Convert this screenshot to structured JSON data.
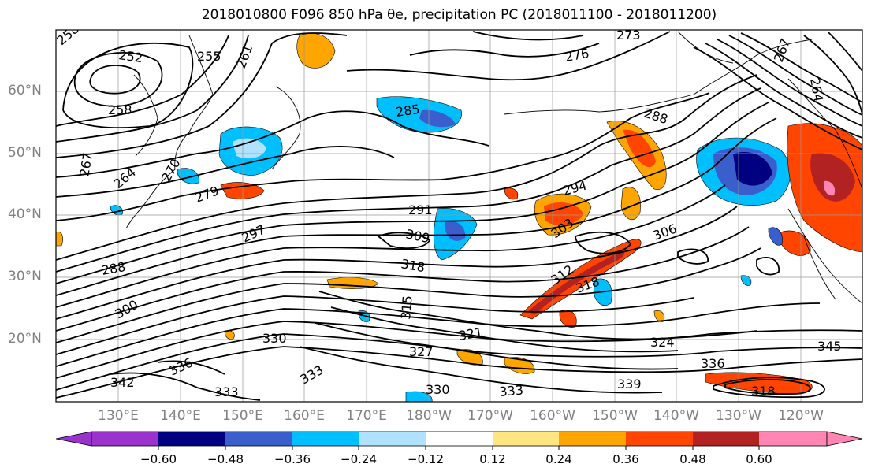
{
  "title": "2018010800 F096 850 hPa θe, precipitation PC (2018011100 - 2018011200)",
  "map": {
    "lat_ticks": [
      "60°N",
      "50°N",
      "40°N",
      "30°N",
      "20°N"
    ],
    "lon_ticks": [
      "130°E",
      "140°E",
      "150°E",
      "160°E",
      "170°E",
      "180°W",
      "170°W",
      "160°W",
      "150°W",
      "140°W",
      "130°W",
      "120°W"
    ],
    "contour_labels": [
      {
        "text": "258"
      },
      {
        "text": "252"
      },
      {
        "text": "255"
      },
      {
        "text": "261"
      },
      {
        "text": "273"
      },
      {
        "text": "276"
      },
      {
        "text": "267"
      },
      {
        "text": "264"
      },
      {
        "text": "258"
      },
      {
        "text": "285"
      },
      {
        "text": "288"
      },
      {
        "text": "267"
      },
      {
        "text": "264"
      },
      {
        "text": "270"
      },
      {
        "text": "279"
      },
      {
        "text": "294"
      },
      {
        "text": "291"
      },
      {
        "text": "297"
      },
      {
        "text": "309"
      },
      {
        "text": "303"
      },
      {
        "text": "306"
      },
      {
        "text": "318"
      },
      {
        "text": "312"
      },
      {
        "text": "318"
      },
      {
        "text": "288"
      },
      {
        "text": "300"
      },
      {
        "text": "315"
      },
      {
        "text": "321"
      },
      {
        "text": "324"
      },
      {
        "text": "330"
      },
      {
        "text": "327"
      },
      {
        "text": "336"
      },
      {
        "text": "342"
      },
      {
        "text": "333"
      },
      {
        "text": "333"
      },
      {
        "text": "330"
      },
      {
        "text": "333"
      },
      {
        "text": "339"
      },
      {
        "text": "336"
      },
      {
        "text": "345"
      },
      {
        "text": "318"
      }
    ]
  },
  "colorbar": {
    "colors": [
      "#9933cc",
      "#000080",
      "#3a5fcd",
      "#00bfff",
      "#b0e2ff",
      "#ffffff",
      "#ffe680",
      "#ffa500",
      "#ff4500",
      "#b22222",
      "#ff85b3"
    ],
    "tick_labels": [
      "−0.60",
      "−0.48",
      "−0.36",
      "−0.24",
      "−0.12",
      "0.12",
      "0.24",
      "0.36",
      "0.48",
      "0.60"
    ]
  }
}
